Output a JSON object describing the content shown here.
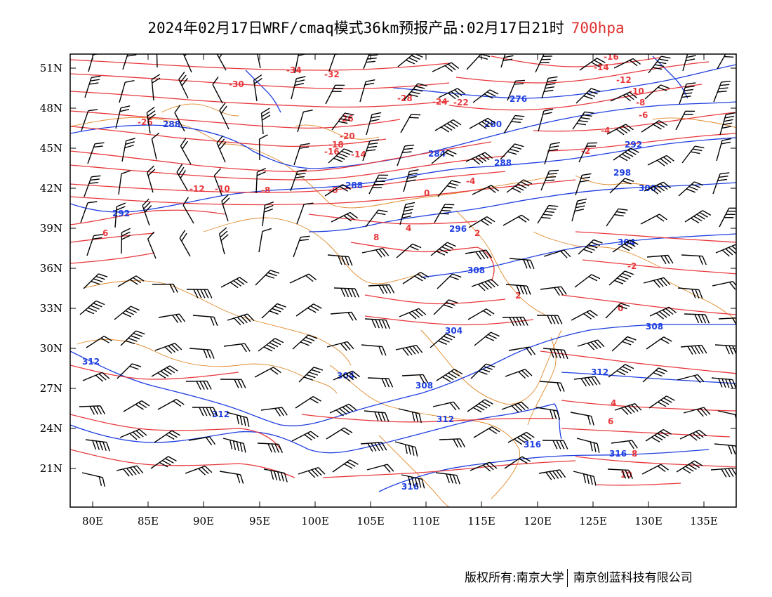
{
  "title": {
    "main": "2024年02月17日WRF/cmaq模式36km预报产品:02月17日21时",
    "level": "700hpa"
  },
  "axes": {
    "lon_labels": [
      "80E",
      "85E",
      "90E",
      "95E",
      "100E",
      "105E",
      "110E",
      "115E",
      "120E",
      "125E",
      "130E",
      "135E"
    ],
    "lat_labels": [
      "21N",
      "24N",
      "27N",
      "30N",
      "33N",
      "36N",
      "39N",
      "42N",
      "45N",
      "48N",
      "51N"
    ],
    "lon_range": [
      78,
      138
    ],
    "lat_range": [
      18,
      52
    ]
  },
  "contour_labels": {
    "height_dagpm": [
      "288",
      "276",
      "280",
      "284",
      "288",
      "292",
      "288",
      "296",
      "292",
      "298",
      "308",
      "300",
      "304",
      "304",
      "308",
      "312",
      "304",
      "308",
      "312",
      "312",
      "312",
      "316",
      "316",
      "316"
    ],
    "temperature_c": [
      "-34",
      "-32",
      "-30",
      "-28",
      "-26",
      "-24",
      "-22",
      "-26",
      "-20",
      "-18",
      "-16",
      "-14",
      "-12",
      "-10",
      "-8",
      "-6",
      "-4",
      "-2",
      "0",
      "2",
      "4",
      "6",
      "8",
      "10",
      "-16",
      "-14",
      "-12",
      "-10",
      "-8",
      "-6",
      "-4",
      "-2",
      "0",
      "2",
      "4",
      "6",
      "8"
    ]
  },
  "colors": {
    "temperature": "#e8383c",
    "height": "#1f3fe0",
    "border": "#e0892a",
    "wind": "#000000",
    "level_text": "#e03030"
  },
  "footer": {
    "left": "版权所有:南京大学",
    "right": "南京创蓝科技有限公司"
  }
}
